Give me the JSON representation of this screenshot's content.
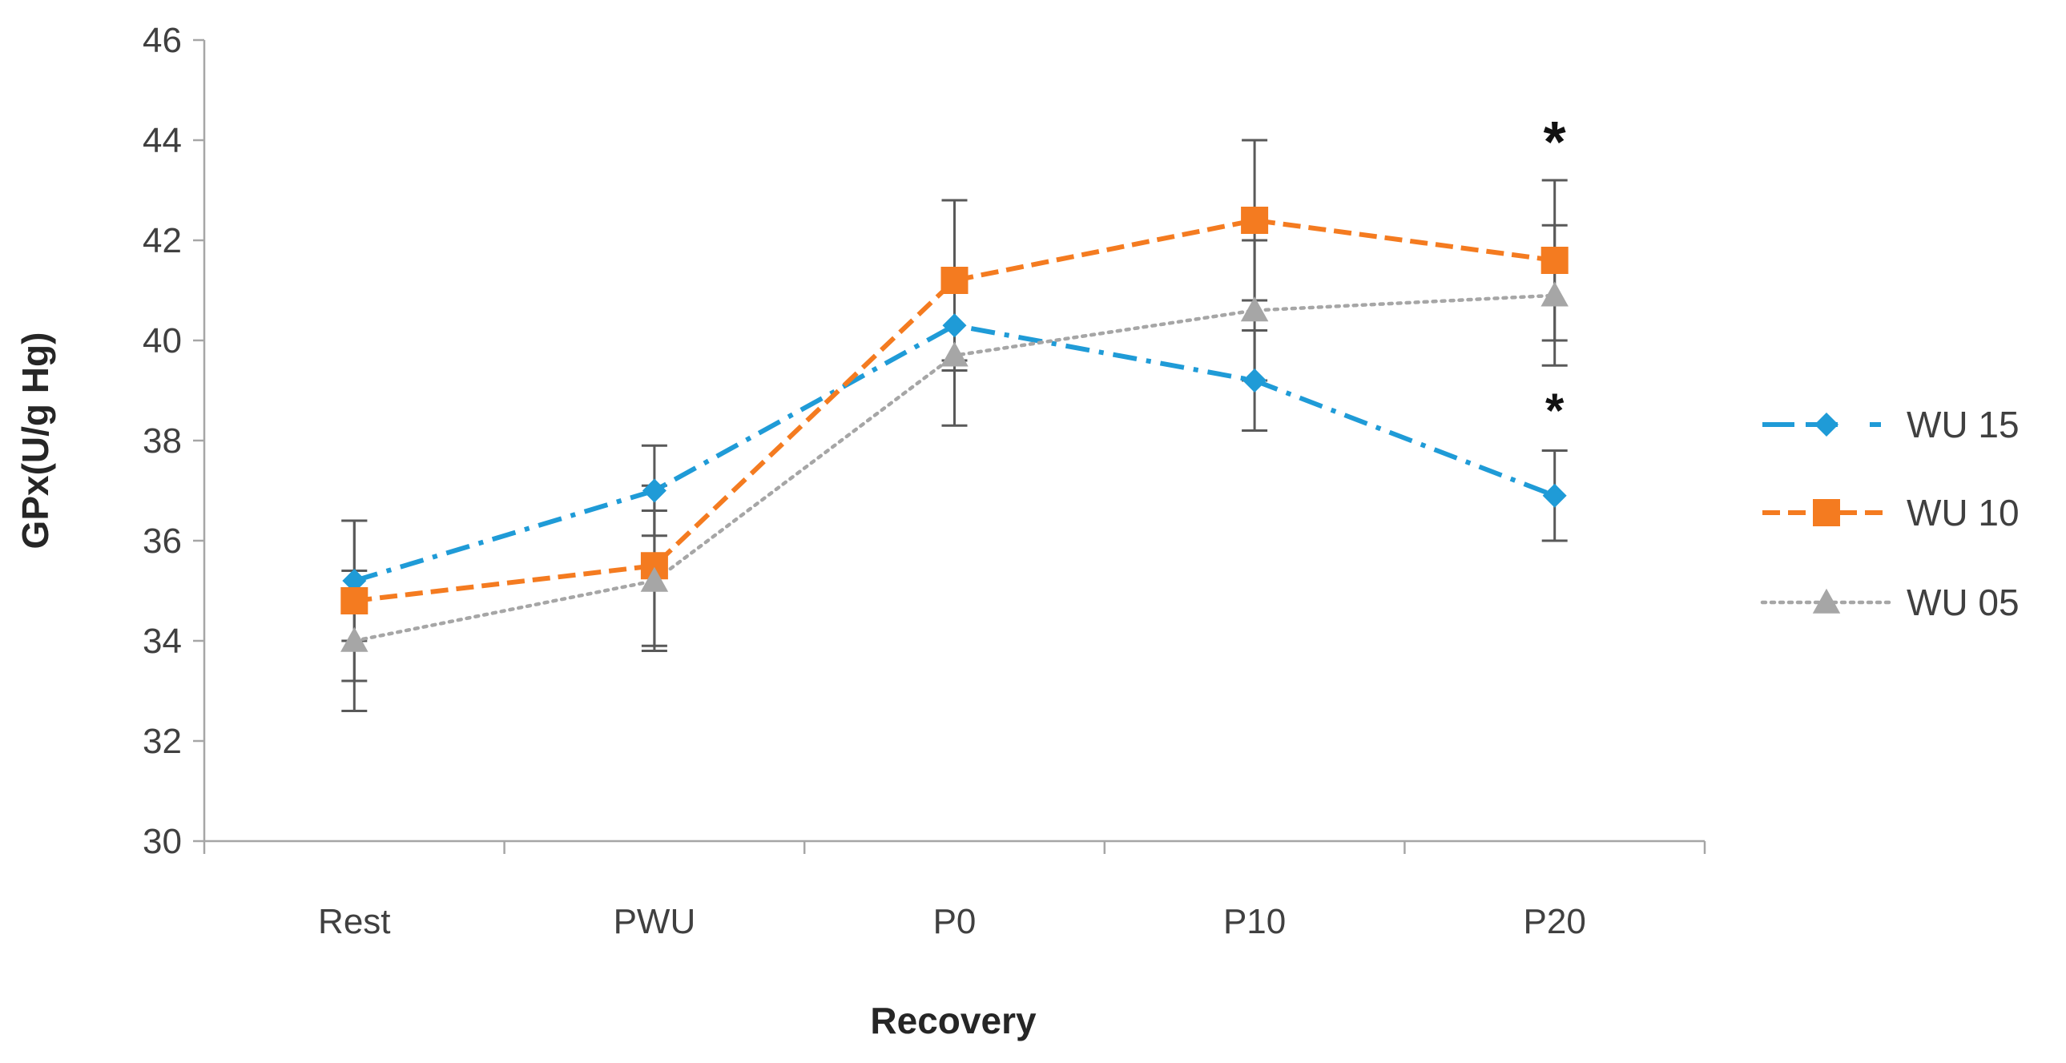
{
  "chart_data": {
    "type": "line",
    "title": "",
    "xlabel": "Recovery",
    "ylabel": "GPx(U/g Hg)",
    "categories": [
      "Rest",
      "PWU",
      "P0",
      "P10",
      "P20"
    ],
    "ylim": [
      30,
      46
    ],
    "yticks": [
      "30",
      "32",
      "34",
      "36",
      "38",
      "40",
      "42",
      "44",
      "46"
    ],
    "grid": false,
    "legend_position": "right",
    "series": [
      {
        "name": "WU 15",
        "color": "#1f9bd7",
        "marker": "diamond",
        "line_style": "dash-dot",
        "values": [
          35.2,
          37.0,
          40.3,
          39.2,
          36.9
        ],
        "errors": [
          1.2,
          0.9,
          0.9,
          1.0,
          0.9
        ]
      },
      {
        "name": "WU 10",
        "color": "#f47b20",
        "marker": "square",
        "line_style": "dashed",
        "values": [
          34.8,
          35.5,
          41.2,
          42.4,
          41.6
        ],
        "errors": [
          1.6,
          1.6,
          1.6,
          1.6,
          1.6
        ]
      },
      {
        "name": "WU 05",
        "color": "#a6a6a6",
        "marker": "triangle",
        "line_style": "dotted",
        "values": [
          34.0,
          35.2,
          39.7,
          40.6,
          40.9
        ],
        "errors": [
          1.4,
          1.4,
          1.4,
          1.4,
          1.4
        ]
      }
    ],
    "annotations": [
      {
        "text": "*",
        "category": "P20",
        "y": 44.2,
        "size": "large"
      },
      {
        "text": "*",
        "category": "P20",
        "y": 38.8,
        "size": "small"
      }
    ]
  }
}
